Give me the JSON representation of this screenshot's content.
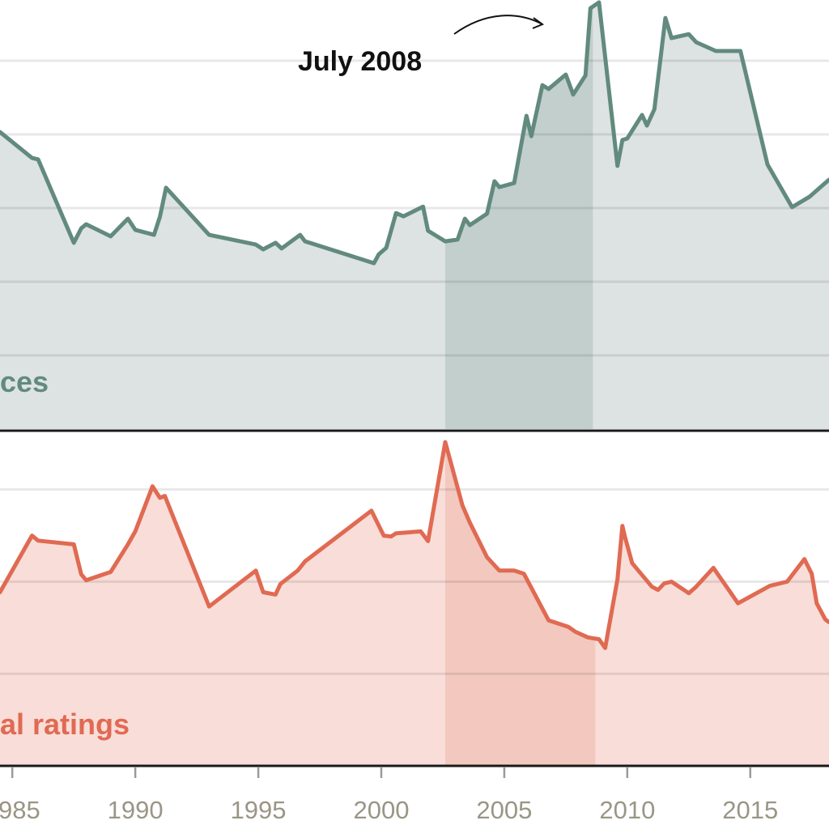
{
  "chart_data": [
    {
      "type": "area",
      "series_label": "ces",
      "annotation": "July 2008",
      "xlim": [
        1984.5,
        2018.2
      ],
      "ylim": [
        0,
        145.6
      ],
      "grid_values": [
        25,
        50,
        75,
        100,
        125
      ],
      "grid": true,
      "highlight_period": [
        2002.6,
        2008.6
      ],
      "colors": {
        "line": "#628a7e",
        "fill": "#dde3e2",
        "highlight": "#c3cfcc",
        "label": "#628a7e"
      },
      "x": [
        1984.5,
        1985.8,
        1986.05,
        1987.5,
        1987.8,
        1988.0,
        1989.0,
        1989.7,
        1990.0,
        1990.76,
        1991.0,
        1991.25,
        1993.0,
        1994.9,
        1995.2,
        1995.7,
        1995.95,
        1996.7,
        1996.9,
        1999.7,
        1999.9,
        2000.2,
        2000.6,
        2000.9,
        2001.7,
        2001.9,
        2002.6,
        2003.1,
        2003.4,
        2003.6,
        2004.3,
        2004.6,
        2004.8,
        2005.4,
        2005.9,
        2006.1,
        2006.55,
        2006.8,
        2007.5,
        2007.8,
        2008.3,
        2008.5,
        2008.85,
        2009.6,
        2009.8,
        2010.0,
        2010.6,
        2010.8,
        2011.1,
        2011.55,
        2011.8,
        2012.5,
        2012.8,
        2013.6,
        2014.6,
        2015.7,
        2016.7,
        2017.4,
        2018.2
      ],
      "y": [
        100.8,
        92.0,
        91.5,
        63.2,
        68.1,
        69.5,
        65.4,
        71.4,
        67.6,
        65.9,
        72.0,
        81.9,
        65.9,
        62.6,
        61.0,
        63.2,
        61.3,
        65.9,
        63.7,
        56.3,
        59.3,
        61.5,
        73.3,
        72.2,
        75.5,
        67.3,
        63.7,
        64.3,
        71.4,
        69.2,
        73.1,
        84.1,
        82.1,
        83.5,
        106.3,
        99.4,
        116.7,
        115.4,
        120.3,
        113.5,
        120.0,
        142.8,
        144.8,
        89.3,
        98.1,
        98.6,
        106.6,
        103.0,
        108.5,
        139.5,
        132.7,
        134.0,
        131.3,
        128.3,
        128.3,
        89.8,
        75.3,
        78.8,
        84.6
      ]
    },
    {
      "type": "area",
      "series_label": "al ratings",
      "xlim": [
        1984.5,
        2018.2
      ],
      "ylim": [
        20,
        92.6
      ],
      "grid_values": [
        40,
        60,
        80
      ],
      "grid": true,
      "highlight_period": [
        2002.6,
        2008.7
      ],
      "colors": {
        "line": "#e06a52",
        "fill": "#f9ddd8",
        "highlight": "#f2c8bf",
        "label": "#e06a52"
      },
      "x": [
        1984.5,
        1985.8,
        1986.05,
        1987.5,
        1987.8,
        1988.0,
        1989.0,
        1989.7,
        1990.0,
        1990.7,
        1991.0,
        1991.2,
        1993.0,
        1994.9,
        1995.2,
        1995.7,
        1995.9,
        1996.6,
        1996.9,
        1999.6,
        2000.1,
        2000.4,
        2000.6,
        2001.6,
        2001.9,
        2002.6,
        2003.3,
        2003.6,
        2004.3,
        2004.8,
        2005.4,
        2005.8,
        2006.8,
        2007.6,
        2007.9,
        2008.4,
        2008.85,
        2009.1,
        2009.6,
        2009.8,
        2009.9,
        2010.2,
        2011.0,
        2011.25,
        2011.5,
        2011.8,
        2012.5,
        2012.8,
        2013.5,
        2014.5,
        2015.8,
        2016.5,
        2016.7,
        2017.2,
        2017.5,
        2017.7,
        2018.05,
        2018.2
      ],
      "y": [
        57.7,
        70.0,
        68.9,
        68.1,
        61.6,
        60.3,
        62.1,
        68.1,
        70.9,
        80.7,
        78.2,
        78.6,
        54.6,
        62.4,
        57.7,
        57.2,
        59.5,
        62.4,
        64.4,
        75.4,
        70.0,
        69.8,
        70.5,
        70.9,
        68.8,
        90.3,
        76.5,
        72.8,
        65.3,
        62.4,
        62.4,
        61.7,
        51.6,
        50.2,
        49.1,
        47.9,
        47.5,
        45.6,
        60.5,
        72.1,
        69.8,
        64.0,
        58.9,
        58.2,
        59.6,
        60.0,
        57.5,
        58.9,
        63.0,
        55.3,
        59.1,
        60.0,
        61.4,
        64.9,
        61.7,
        55.3,
        51.8,
        51.2
      ]
    }
  ],
  "x_axis": {
    "ticks": [
      1985,
      1990,
      1995,
      2000,
      2005,
      2010,
      2015
    ],
    "tick_labels": [
      "1985",
      "1990",
      "1995",
      "2000",
      "2005",
      "2010",
      "2015"
    ]
  }
}
